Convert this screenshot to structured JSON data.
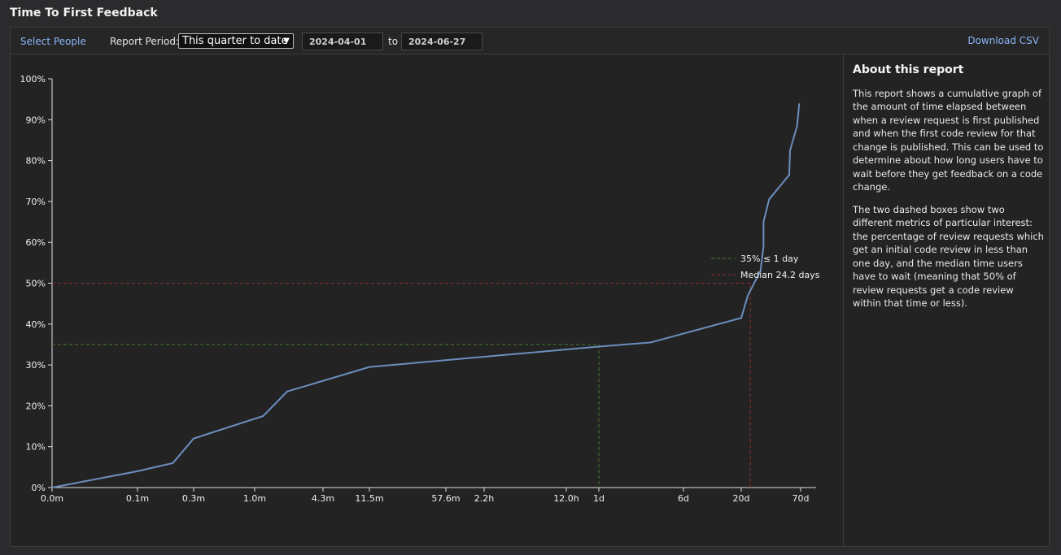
{
  "page": {
    "title": "Time To First Feedback"
  },
  "toolbar": {
    "select_people": "Select People",
    "period_label": "Report Period:",
    "period_value": "This quarter to date",
    "start_date": "2024-04-01",
    "to_label": "to",
    "end_date": "2024-06-27",
    "download": "Download CSV"
  },
  "about": {
    "title": "About this report",
    "p1": "This report shows a cumulative graph of the amount of time elapsed between when a review request is first published and when the first code review for that change is published. This can be used to determine about how long users have to wait before they get feedback on a code change.",
    "p2": "The two dashed boxes show two different metrics of particular interest: the percentage of review requests which get an initial code review in less than one day, and the median time users have to wait (meaning that 50% of review requests get a code review within that time or less)."
  },
  "colors": {
    "line": "#6c8ebf",
    "green": "#4a7a32",
    "red": "#8b2e2e"
  },
  "chart_data": {
    "type": "line",
    "x_scale": "log",
    "x_tick_labels": [
      "0.0m",
      "0.1m",
      "0.3m",
      "1.0m",
      "4.3m",
      "11.5m",
      "57.6m",
      "2.2h",
      "12.0h",
      "1d",
      "6d",
      "20d",
      "70d"
    ],
    "y_tick_labels": [
      "0%",
      "10%",
      "20%",
      "30%",
      "40%",
      "50%",
      "60%",
      "70%",
      "80%",
      "90%",
      "100%"
    ],
    "ylim": [
      0,
      100
    ],
    "series": [
      {
        "points": [
          [
            "0.0m",
            0
          ],
          [
            "0.1m",
            4
          ],
          [
            "0.2m",
            6
          ],
          [
            "0.3m",
            12
          ],
          [
            "1.2m",
            17.5
          ],
          [
            "2m",
            23.5
          ],
          [
            "11.5m",
            29.5
          ],
          [
            "1d",
            34.5
          ],
          [
            "3d",
            35.5
          ],
          [
            "20d",
            41.5
          ],
          [
            "23d",
            47
          ],
          [
            "30d",
            53
          ],
          [
            "32d",
            59
          ],
          [
            "32d",
            65
          ],
          [
            "36d",
            70.5
          ],
          [
            "55d",
            76.5
          ],
          [
            "56d",
            82.5
          ],
          [
            "65d",
            88.5
          ],
          [
            "68d",
            94
          ]
        ]
      }
    ],
    "legend": [
      {
        "label": "35% ≤ 1 day",
        "color": "green"
      },
      {
        "label": "Median 24.2 days",
        "color": "red"
      }
    ],
    "markers": [
      {
        "metric": "35% ≤ 1 day",
        "x": "1d",
        "y": 35
      },
      {
        "metric": "Median 24.2 days",
        "x": "24.2d",
        "y": 50
      }
    ],
    "grid": false,
    "legend_position": "right-middle"
  }
}
